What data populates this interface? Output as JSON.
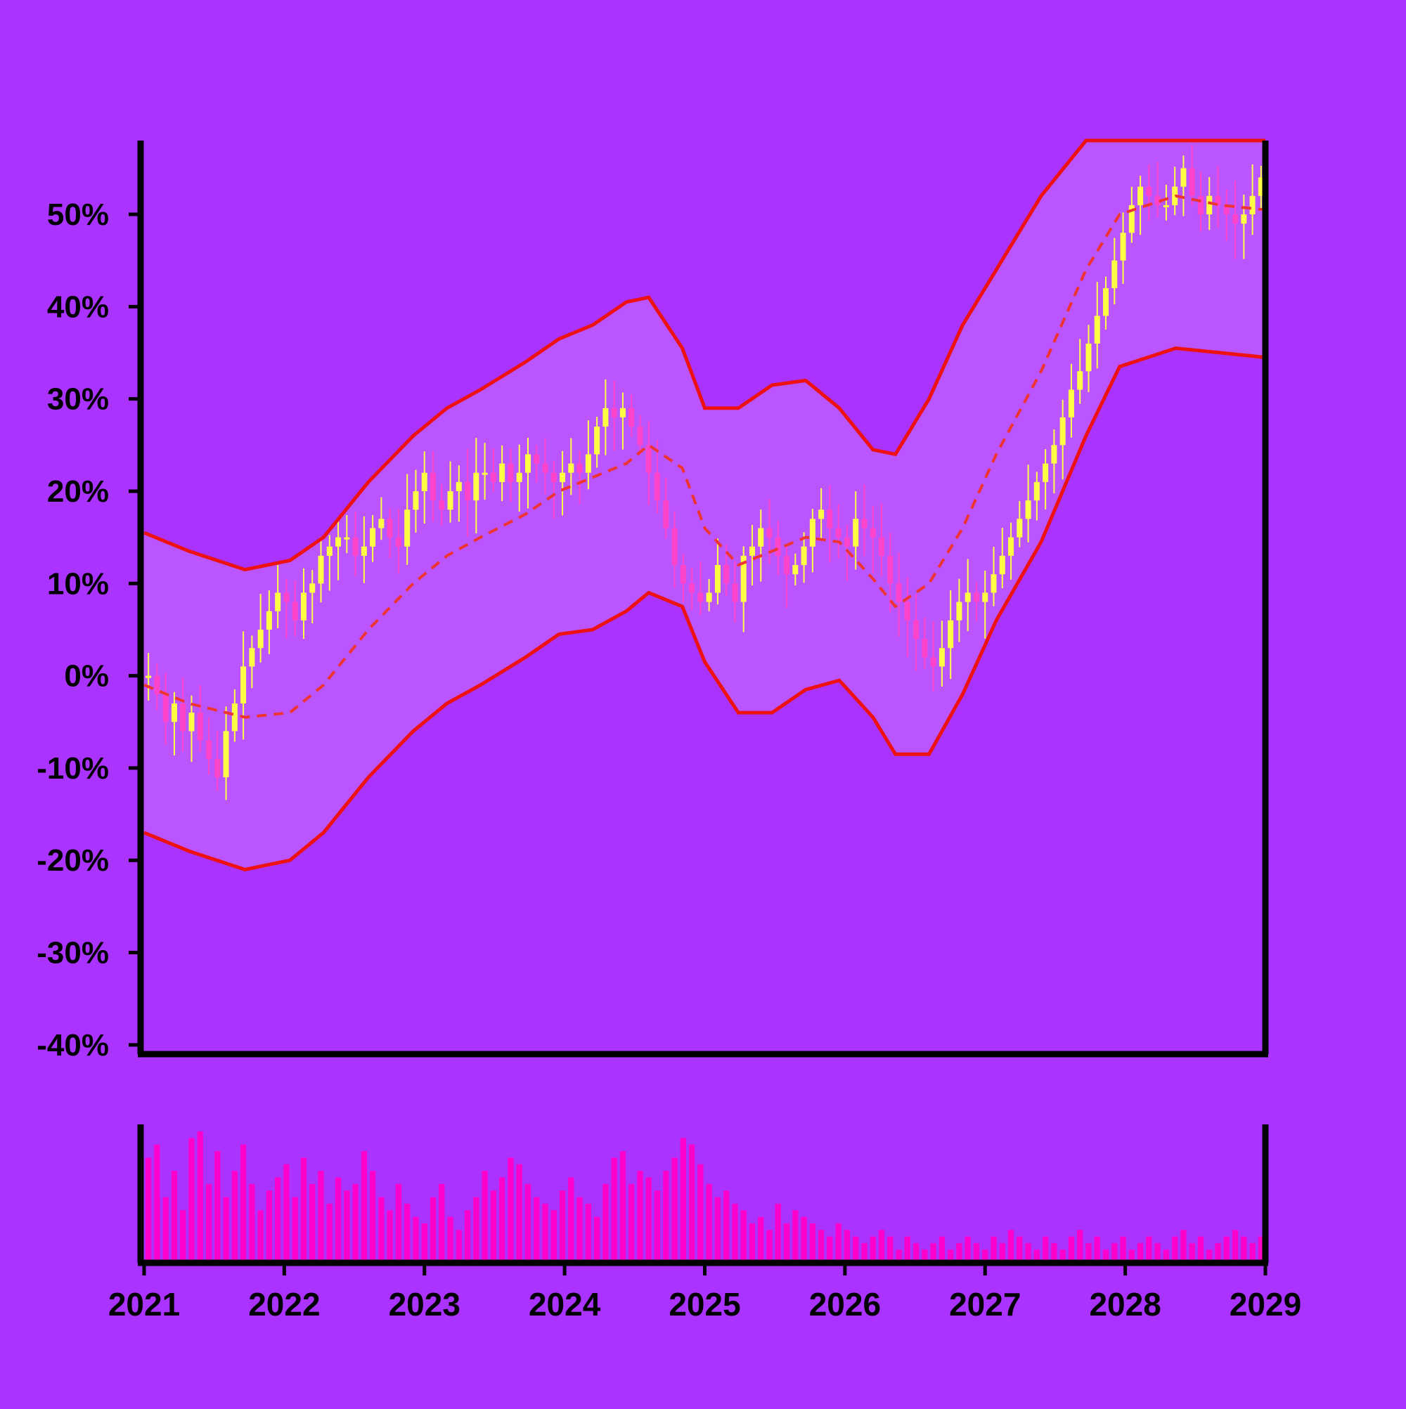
{
  "chart_data": {
    "type": "candlestick",
    "title": "",
    "xlabel": "",
    "ylabel": "",
    "x_tick_labels": [
      "2021",
      "2022",
      "2023",
      "2024",
      "2025",
      "2026",
      "2027",
      "2028",
      "2029"
    ],
    "y_tick_labels": [
      "-40%",
      "-30%",
      "-20%",
      "-10%",
      "0%",
      "10%",
      "20%",
      "30%",
      "40%",
      "50%"
    ],
    "xlim": [
      "2021-01-01",
      "2029-01-01"
    ],
    "ylim": [
      -41,
      58
    ],
    "grid": false,
    "legend": "none",
    "price_series_weekly_close_pct": [
      0,
      -2,
      -5,
      -3,
      -6,
      -4,
      -7,
      -9,
      -11,
      -6,
      -3,
      1,
      3,
      5,
      7,
      9,
      8,
      6,
      9,
      10,
      13,
      14,
      15,
      15,
      13,
      14,
      16,
      17,
      15,
      14,
      18,
      20,
      22,
      19,
      18,
      20,
      21,
      19,
      22,
      22,
      21,
      23,
      21,
      22,
      24,
      23,
      22,
      21,
      22,
      23,
      22,
      24,
      27,
      29,
      28,
      29,
      27,
      25,
      22,
      19,
      16,
      12,
      10,
      9,
      8,
      9,
      12,
      10,
      8,
      13,
      14,
      16,
      15,
      13,
      11,
      12,
      14,
      17,
      18,
      16,
      15,
      14,
      17,
      16,
      15,
      13,
      10,
      8,
      6,
      4,
      2,
      1,
      3,
      6,
      8,
      9,
      8,
      9,
      11,
      13,
      15,
      17,
      19,
      21,
      23,
      25,
      28,
      31,
      33,
      36,
      39,
      42,
      45,
      48,
      51,
      53,
      52,
      51,
      51,
      53,
      55,
      52,
      50,
      52,
      51,
      50,
      49,
      50,
      52,
      54
    ],
    "upper_band_pct": [
      [
        0,
        15.5
      ],
      [
        0.4,
        13.5
      ],
      [
        0.9,
        11.5
      ],
      [
        1.3,
        12.5
      ],
      [
        1.6,
        15
      ],
      [
        2.0,
        21
      ],
      [
        2.4,
        26
      ],
      [
        2.7,
        29
      ],
      [
        3.0,
        31
      ],
      [
        3.4,
        34
      ],
      [
        3.7,
        36.5
      ],
      [
        4.0,
        38
      ],
      [
        4.3,
        40.5
      ],
      [
        4.5,
        41
      ],
      [
        4.8,
        35.5
      ],
      [
        5.0,
        29
      ],
      [
        5.3,
        29
      ],
      [
        5.6,
        31.5
      ],
      [
        5.9,
        32
      ],
      [
        6.2,
        29
      ],
      [
        6.5,
        24.5
      ],
      [
        6.7,
        24
      ],
      [
        7.0,
        30
      ],
      [
        7.3,
        38
      ],
      [
        7.6,
        44
      ],
      [
        8.0,
        52
      ],
      [
        8.4,
        58
      ],
      [
        10,
        58
      ]
    ],
    "lower_band_pct": [
      [
        0,
        -17
      ],
      [
        0.4,
        -19
      ],
      [
        0.9,
        -21
      ],
      [
        1.3,
        -20
      ],
      [
        1.6,
        -17
      ],
      [
        2.0,
        -11
      ],
      [
        2.4,
        -6
      ],
      [
        2.7,
        -3
      ],
      [
        3.0,
        -1
      ],
      [
        3.4,
        2
      ],
      [
        3.7,
        4.5
      ],
      [
        4.0,
        5
      ],
      [
        4.3,
        7
      ],
      [
        4.5,
        9
      ],
      [
        4.8,
        7.5
      ],
      [
        5.0,
        1.5
      ],
      [
        5.3,
        -4
      ],
      [
        5.6,
        -4
      ],
      [
        5.9,
        -1.5
      ],
      [
        6.2,
        -0.5
      ],
      [
        6.5,
        -4.5
      ],
      [
        6.7,
        -8.5
      ],
      [
        7.0,
        -8.5
      ],
      [
        7.3,
        -2
      ],
      [
        7.6,
        6
      ],
      [
        8.0,
        14.5
      ],
      [
        8.4,
        26
      ],
      [
        8.7,
        33.5
      ],
      [
        9.2,
        35.5
      ],
      [
        9.6,
        35
      ],
      [
        10,
        34.5
      ]
    ],
    "middle_line_pct": [
      [
        0,
        -1
      ],
      [
        0.4,
        -3
      ],
      [
        0.9,
        -4.5
      ],
      [
        1.3,
        -4
      ],
      [
        1.6,
        -1
      ],
      [
        2.0,
        5
      ],
      [
        2.4,
        10
      ],
      [
        2.7,
        13
      ],
      [
        3.0,
        15
      ],
      [
        3.4,
        17.5
      ],
      [
        3.7,
        20
      ],
      [
        4.0,
        21.5
      ],
      [
        4.3,
        23
      ],
      [
        4.5,
        25
      ],
      [
        4.8,
        22.5
      ],
      [
        5.0,
        16
      ],
      [
        5.3,
        12
      ],
      [
        5.6,
        13.5
      ],
      [
        5.9,
        15
      ],
      [
        6.2,
        14.5
      ],
      [
        6.5,
        10.5
      ],
      [
        6.7,
        7.5
      ],
      [
        7.0,
        10
      ],
      [
        7.3,
        16
      ],
      [
        7.6,
        24
      ],
      [
        8.0,
        33
      ],
      [
        8.4,
        44
      ],
      [
        8.7,
        50
      ],
      [
        9.2,
        52
      ],
      [
        9.6,
        51
      ],
      [
        10,
        50.5
      ]
    ],
    "volume_relative": [
      0.8,
      0.9,
      0.5,
      0.7,
      0.4,
      0.95,
      1.0,
      0.6,
      0.85,
      0.5,
      0.7,
      0.9,
      0.6,
      0.4,
      0.55,
      0.65,
      0.75,
      0.5,
      0.8,
      0.6,
      0.7,
      0.45,
      0.65,
      0.55,
      0.6,
      0.85,
      0.7,
      0.5,
      0.4,
      0.6,
      0.45,
      0.35,
      0.3,
      0.5,
      0.6,
      0.35,
      0.25,
      0.4,
      0.5,
      0.7,
      0.55,
      0.65,
      0.8,
      0.75,
      0.6,
      0.5,
      0.45,
      0.4,
      0.55,
      0.65,
      0.5,
      0.45,
      0.35,
      0.6,
      0.8,
      0.85,
      0.6,
      0.7,
      0.65,
      0.55,
      0.7,
      0.8,
      0.95,
      0.9,
      0.75,
      0.6,
      0.5,
      0.55,
      0.45,
      0.4,
      0.3,
      0.35,
      0.25,
      0.45,
      0.3,
      0.4,
      0.35,
      0.3,
      0.25,
      0.2,
      0.3,
      0.25,
      0.2,
      0.15,
      0.2,
      0.25,
      0.2,
      0.1,
      0.2,
      0.15,
      0.1,
      0.15,
      0.2,
      0.1,
      0.15,
      0.2,
      0.15,
      0.1,
      0.2,
      0.15,
      0.25,
      0.2,
      0.15,
      0.1,
      0.2,
      0.15,
      0.1,
      0.2,
      0.25,
      0.15,
      0.2,
      0.1,
      0.15,
      0.2,
      0.1,
      0.15,
      0.2,
      0.15,
      0.1,
      0.2,
      0.25,
      0.15,
      0.2,
      0.1,
      0.15,
      0.2,
      0.25,
      0.2,
      0.15,
      0.2
    ]
  },
  "colors": {
    "background": "#aa33ff",
    "band_fill": "#bb55ff",
    "band_line": "#ee1111",
    "middle_line": "#ee3333",
    "candle_up": "#ffff44",
    "candle_down": "#ff44cc",
    "volume": "#ff00cc",
    "axis": "#000000"
  }
}
